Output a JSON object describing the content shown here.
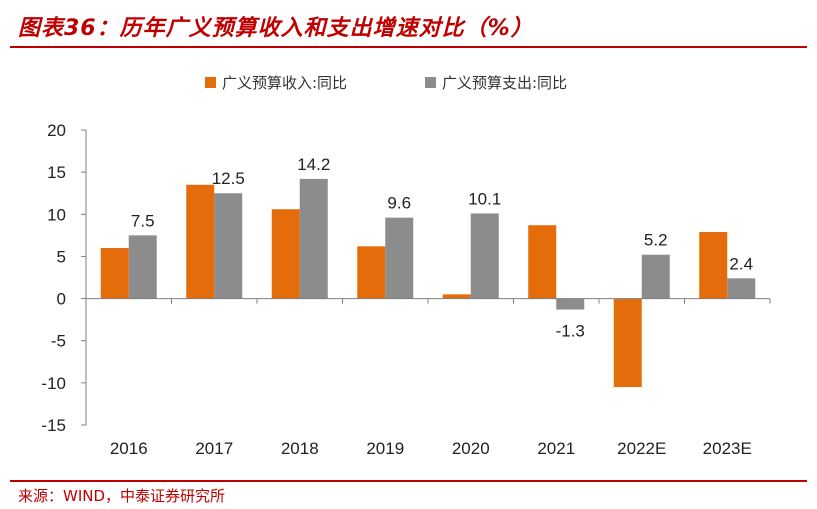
{
  "title": "图表36：历年广义预算收入和支出增速对比（%）",
  "source": "来源：WIND，中泰证券研究所",
  "colors": {
    "accent": "#c00000",
    "series1": "#e46c0a",
    "series2": "#8c8c8c"
  },
  "chart_data": {
    "type": "bar",
    "categories": [
      "2016",
      "2017",
      "2018",
      "2019",
      "2020",
      "2021",
      "2022E",
      "2023E"
    ],
    "series": [
      {
        "name": "广义预算收入:同比",
        "values": [
          6.0,
          13.5,
          10.6,
          6.2,
          0.5,
          8.7,
          -10.5,
          7.9
        ]
      },
      {
        "name": "广义预算支出:同比",
        "values": [
          7.5,
          12.5,
          14.2,
          9.6,
          10.1,
          -1.3,
          5.2,
          2.4
        ]
      }
    ],
    "labeled_series_index": 1,
    "data_labels": [
      "7.5",
      "12.5",
      "14.2",
      "9.6",
      "10.1",
      "-1.3",
      "5.2",
      "2.4"
    ],
    "yticks": [
      "20",
      "15",
      "10",
      "5",
      "0",
      "-5",
      "-10",
      "-15"
    ],
    "ylim": [
      -15,
      20
    ],
    "legend": "top-center",
    "grid": false,
    "xlabel": "",
    "ylabel": ""
  }
}
